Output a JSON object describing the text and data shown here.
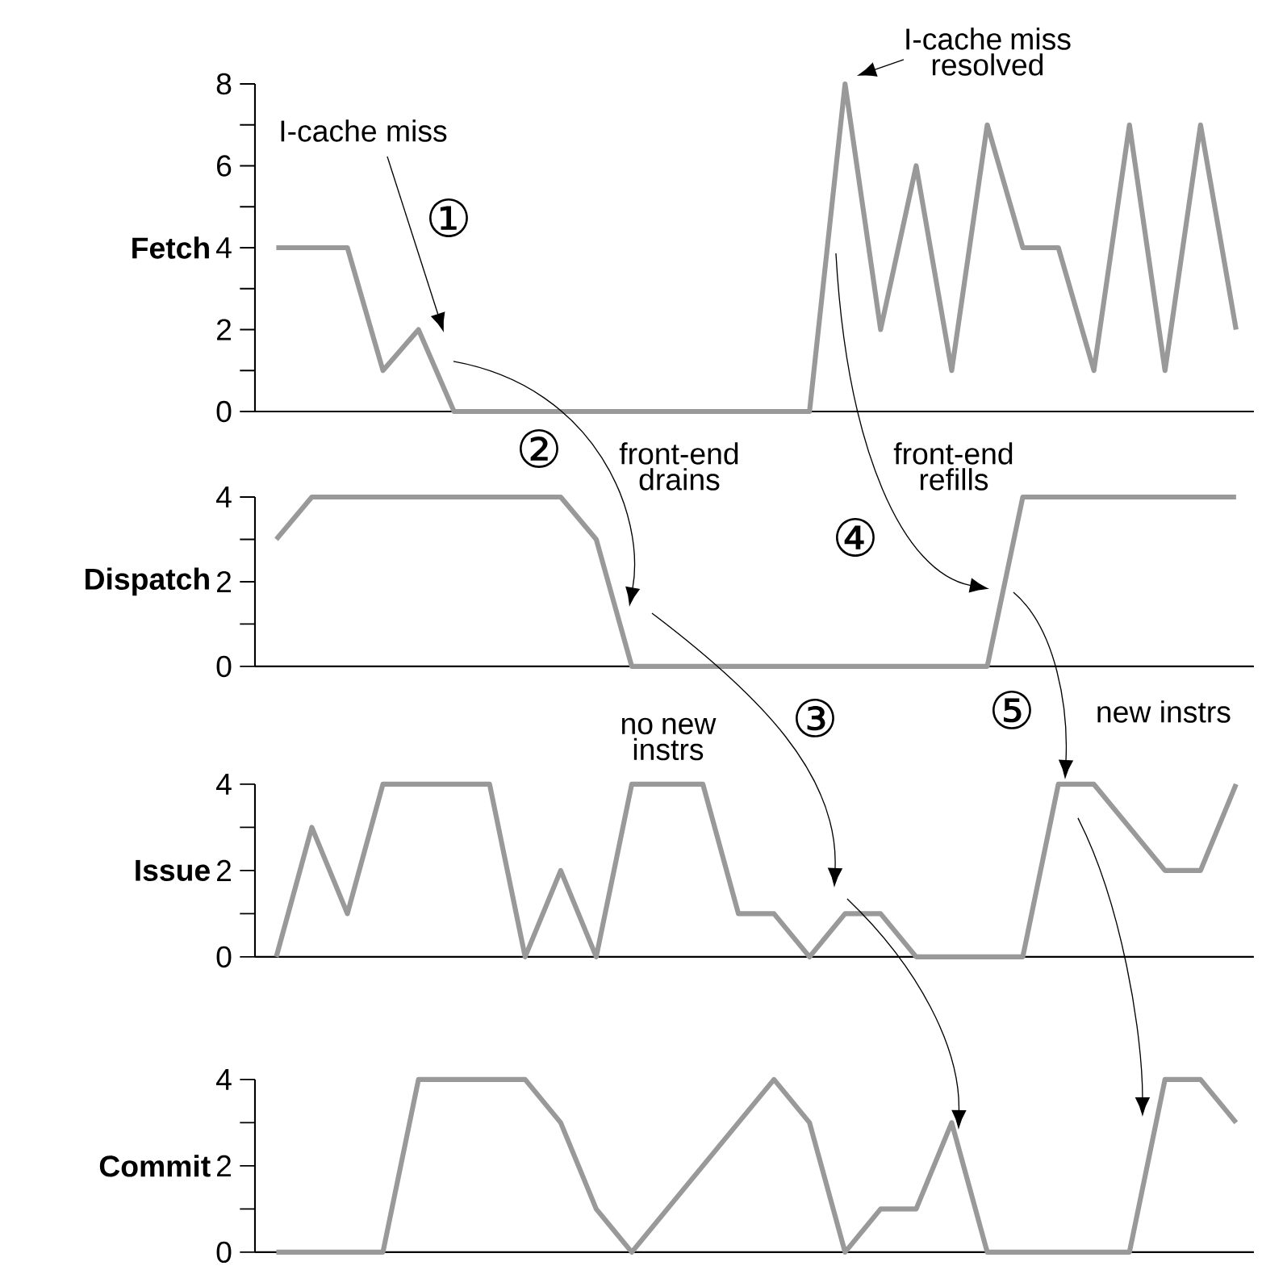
{
  "chart_data": [
    {
      "type": "line",
      "ylabel": "Fetch",
      "categories": [
        null,
        null,
        null,
        null,
        null,
        null,
        null,
        null,
        null,
        null,
        null,
        null,
        null,
        null,
        null,
        null,
        null,
        null,
        null,
        null,
        null,
        null,
        null,
        null,
        null,
        null,
        null,
        null
      ],
      "values": [
        4,
        4,
        4,
        1,
        2,
        0,
        0,
        0,
        0,
        0,
        0,
        0,
        0,
        0,
        0,
        0,
        8,
        2,
        6,
        1,
        7,
        4,
        4,
        1,
        7,
        1,
        7,
        2
      ],
      "color": "#999999",
      "ylim": [
        0,
        8
      ],
      "yticks": [
        0,
        {
          "value": 1,
          "label": null
        },
        2,
        {
          "value": 3,
          "label": null
        },
        4,
        {
          "value": 5,
          "label": null
        },
        6,
        {
          "value": 7,
          "label": null
        },
        8
      ],
      "tick_labels": "y",
      "annotations": [
        "I-cache miss",
        "①",
        "I-cache miss resolved"
      ]
    },
    {
      "type": "line",
      "ylabel": "Dispatch",
      "categories": [
        null,
        null,
        null,
        null,
        null,
        null,
        null,
        null,
        null,
        null,
        null,
        null,
        null,
        null,
        null,
        null,
        null,
        null,
        null,
        null,
        null,
        null,
        null,
        null,
        null,
        null,
        null,
        null
      ],
      "values": [
        3,
        4,
        4,
        4,
        4,
        4,
        4,
        4,
        4,
        3,
        0,
        0,
        0,
        0,
        0,
        0,
        0,
        0,
        0,
        0,
        0,
        4,
        4,
        4,
        4,
        4,
        4,
        4
      ],
      "color": "#999999",
      "ylim": [
        0,
        4
      ],
      "yticks": [
        0,
        {
          "value": 1,
          "label": null
        },
        2,
        {
          "value": 3,
          "label": null
        },
        4
      ],
      "tick_labels": "y",
      "annotations": [
        "②",
        "front-end drains",
        "④",
        "front-end refills"
      ]
    },
    {
      "type": "line",
      "ylabel": "Issue",
      "categories": [
        null,
        null,
        null,
        null,
        null,
        null,
        null,
        null,
        null,
        null,
        null,
        null,
        null,
        null,
        null,
        null,
        null,
        null,
        null,
        null,
        null,
        null,
        null,
        null,
        null,
        null,
        null,
        null
      ],
      "values": [
        0,
        3,
        1,
        4,
        4,
        4,
        4,
        0,
        2,
        0,
        4,
        4,
        4,
        1,
        1,
        0,
        1,
        1,
        0,
        0,
        0,
        0,
        4,
        4,
        3,
        2,
        2,
        4
      ],
      "color": "#999999",
      "ylim": [
        0,
        4
      ],
      "yticks": [
        0,
        {
          "value": 1,
          "label": null
        },
        2,
        {
          "value": 3,
          "label": null
        },
        4
      ],
      "tick_labels": "y",
      "annotations": [
        "no new instrs",
        "③",
        "⑤",
        "new instrs"
      ]
    },
    {
      "type": "line",
      "ylabel": "Commit",
      "categories": [
        null,
        null,
        null,
        null,
        null,
        null,
        null,
        null,
        null,
        null,
        null,
        null,
        null,
        null,
        null,
        null,
        null,
        null,
        null,
        null,
        null,
        null,
        null,
        null,
        null,
        null,
        null,
        null
      ],
      "values": [
        0,
        0,
        0,
        0,
        4,
        4,
        4,
        4,
        3,
        1,
        0,
        1,
        2,
        3,
        4,
        3,
        0,
        1,
        1,
        3,
        0,
        0,
        0,
        0,
        0,
        4,
        4,
        3
      ],
      "color": "#999999",
      "ylim": [
        0,
        4
      ],
      "yticks": [
        0,
        {
          "value": 1,
          "label": null
        },
        2,
        {
          "value": 3,
          "label": null
        },
        4
      ],
      "tick_labels": "y"
    }
  ]
}
